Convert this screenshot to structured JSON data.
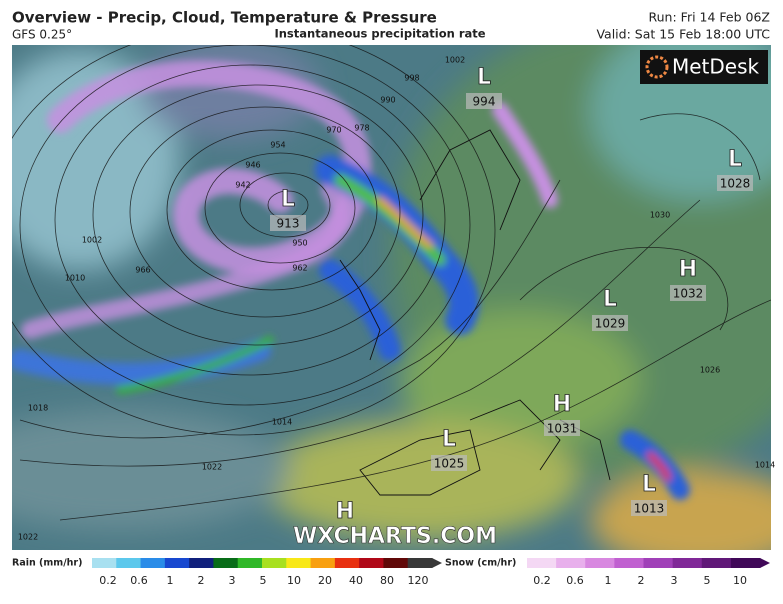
{
  "header": {
    "title": "Overview - Precip, Cloud, Temperature & Pressure",
    "model": "GFS 0.25°",
    "subtitle": "Instantaneous precipitation rate",
    "run": "Run: Fri 14 Feb 06Z",
    "valid": "Valid: Sat 15 Feb 18:00 UTC"
  },
  "logo": "MetDesk",
  "watermark": "WXCHARTS.COM",
  "pressure_centres": [
    {
      "symbol": "L",
      "value": 994
    },
    {
      "symbol": "L",
      "value": 913
    },
    {
      "symbol": "L",
      "value": 1028
    },
    {
      "symbol": "H",
      "value": 1032
    },
    {
      "symbol": "L",
      "value": 1029
    },
    {
      "symbol": "H",
      "value": 1031
    },
    {
      "symbol": "L",
      "value": 1025
    },
    {
      "symbol": "L",
      "value": 1013
    },
    {
      "symbol": "H"
    }
  ],
  "isobar_labels": [
    998,
    1002,
    990,
    978,
    970,
    954,
    946,
    942,
    950,
    962,
    966,
    1002,
    1010,
    1018,
    1014,
    1022,
    1030,
    1026,
    1014,
    1022
  ],
  "legend": {
    "rain": {
      "label": "Rain (mm/hr)",
      "ticks": [
        0.2,
        0.6,
        1,
        2,
        3,
        5,
        10,
        20,
        40,
        80,
        120
      ],
      "colors": [
        "#a8e0f0",
        "#5cc8ec",
        "#2a8ce8",
        "#1848d0",
        "#10207c",
        "#086c18",
        "#30b828",
        "#a8e020",
        "#f8e818",
        "#f8a010",
        "#e83010",
        "#b00818",
        "#600808",
        "#383838"
      ]
    },
    "snow": {
      "label": "Snow (cm/hr)",
      "ticks": [
        0.2,
        0.6,
        1,
        2,
        3,
        5,
        10
      ],
      "colors": [
        "#f4d8f4",
        "#e8b0ec",
        "#d888e0",
        "#c060d0",
        "#a040b8",
        "#802898",
        "#601878",
        "#400858"
      ]
    }
  }
}
